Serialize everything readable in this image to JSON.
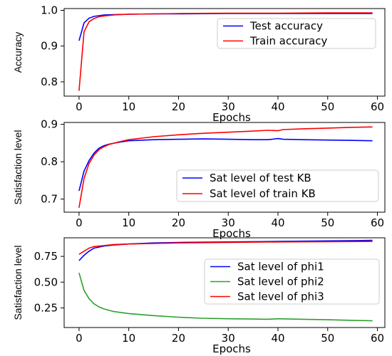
{
  "chart_data": [
    {
      "type": "line",
      "xlabel": "Epochs",
      "ylabel": "Accuracy",
      "xlim": [
        -3,
        61.5
      ],
      "ylim": [
        0.76,
        1.005
      ],
      "xticks": [
        0,
        10,
        20,
        30,
        40,
        50,
        60
      ],
      "yticks": [
        0.8,
        0.9,
        1.0
      ],
      "ytick_labels": [
        "0.8",
        "0.9",
        "1.0"
      ],
      "legend_position": "top-right",
      "series": [
        {
          "name": "Test accuracy",
          "color": "#0000ff",
          "x": [
            0,
            1,
            2,
            3,
            4,
            5,
            7,
            10,
            15,
            20,
            30,
            40,
            50,
            59
          ],
          "y": [
            0.915,
            0.965,
            0.978,
            0.983,
            0.985,
            0.987,
            0.988,
            0.989,
            0.99,
            0.99,
            0.991,
            0.991,
            0.991,
            0.991
          ]
        },
        {
          "name": "Train accuracy",
          "color": "#ff0000",
          "x": [
            0,
            1,
            2,
            3,
            4,
            5,
            7,
            10,
            15,
            20,
            30,
            40,
            50,
            59
          ],
          "y": [
            0.775,
            0.94,
            0.968,
            0.977,
            0.982,
            0.984,
            0.987,
            0.989,
            0.99,
            0.991,
            0.992,
            0.992,
            0.993,
            0.993
          ]
        }
      ]
    },
    {
      "type": "line",
      "xlabel": "Epochs",
      "ylabel": "Satisfaction level",
      "xlim": [
        -3,
        61.5
      ],
      "ylim": [
        0.665,
        0.905
      ],
      "xticks": [
        0,
        10,
        20,
        30,
        40,
        50,
        60
      ],
      "yticks": [
        0.7,
        0.8,
        0.9
      ],
      "ytick_labels": [
        "0.7",
        "0.8",
        "0.9"
      ],
      "legend_position": "lower-right",
      "series": [
        {
          "name": "Sat level of test KB",
          "color": "#0000ff",
          "x": [
            0,
            1,
            2,
            3,
            4,
            5,
            6,
            8,
            10,
            15,
            20,
            25,
            30,
            35,
            38,
            40,
            41,
            45,
            50,
            55,
            59
          ],
          "y": [
            0.722,
            0.775,
            0.803,
            0.823,
            0.836,
            0.843,
            0.847,
            0.852,
            0.856,
            0.859,
            0.86,
            0.861,
            0.86,
            0.859,
            0.859,
            0.862,
            0.86,
            0.859,
            0.858,
            0.857,
            0.856
          ]
        },
        {
          "name": "Sat level of train KB",
          "color": "#ff0000",
          "x": [
            0,
            1,
            2,
            3,
            4,
            5,
            6,
            8,
            10,
            15,
            20,
            25,
            30,
            35,
            38,
            40,
            41,
            45,
            50,
            55,
            59
          ],
          "y": [
            0.677,
            0.755,
            0.795,
            0.818,
            0.832,
            0.84,
            0.846,
            0.853,
            0.859,
            0.867,
            0.872,
            0.876,
            0.879,
            0.882,
            0.884,
            0.883,
            0.886,
            0.888,
            0.89,
            0.892,
            0.893
          ]
        }
      ]
    },
    {
      "type": "line",
      "xlabel": "Epochs",
      "ylabel": "Satisfaction level",
      "xlim": [
        -3,
        61.5
      ],
      "ylim": [
        0.06,
        0.93
      ],
      "xticks": [
        0,
        10,
        20,
        30,
        40,
        50,
        60
      ],
      "yticks": [
        0.25,
        0.5,
        0.75
      ],
      "ytick_labels": [
        "0.25",
        "0.50",
        "0.75"
      ],
      "legend_position": "right",
      "series": [
        {
          "name": "Sat level of phi1",
          "color": "#0000ff",
          "x": [
            0,
            1,
            2,
            3,
            5,
            7,
            10,
            15,
            20,
            30,
            40,
            50,
            59
          ],
          "y": [
            0.71,
            0.76,
            0.8,
            0.83,
            0.85,
            0.86,
            0.87,
            0.88,
            0.885,
            0.89,
            0.895,
            0.9,
            0.905
          ]
        },
        {
          "name": "Sat level of phi2",
          "color": "#2ca02c",
          "x": [
            0,
            1,
            2,
            3,
            4,
            5,
            7,
            10,
            15,
            20,
            25,
            30,
            35,
            38,
            40,
            45,
            50,
            55,
            59
          ],
          "y": [
            0.59,
            0.42,
            0.34,
            0.29,
            0.26,
            0.24,
            0.215,
            0.195,
            0.175,
            0.16,
            0.15,
            0.145,
            0.142,
            0.14,
            0.145,
            0.14,
            0.135,
            0.13,
            0.125
          ]
        },
        {
          "name": "Sat level of phi3",
          "color": "#ff0000",
          "x": [
            0,
            1,
            2,
            3,
            5,
            7,
            10,
            15,
            20,
            30,
            40,
            50,
            59
          ],
          "y": [
            0.77,
            0.8,
            0.83,
            0.845,
            0.855,
            0.865,
            0.87,
            0.875,
            0.88,
            0.885,
            0.89,
            0.892,
            0.895
          ]
        }
      ]
    }
  ]
}
